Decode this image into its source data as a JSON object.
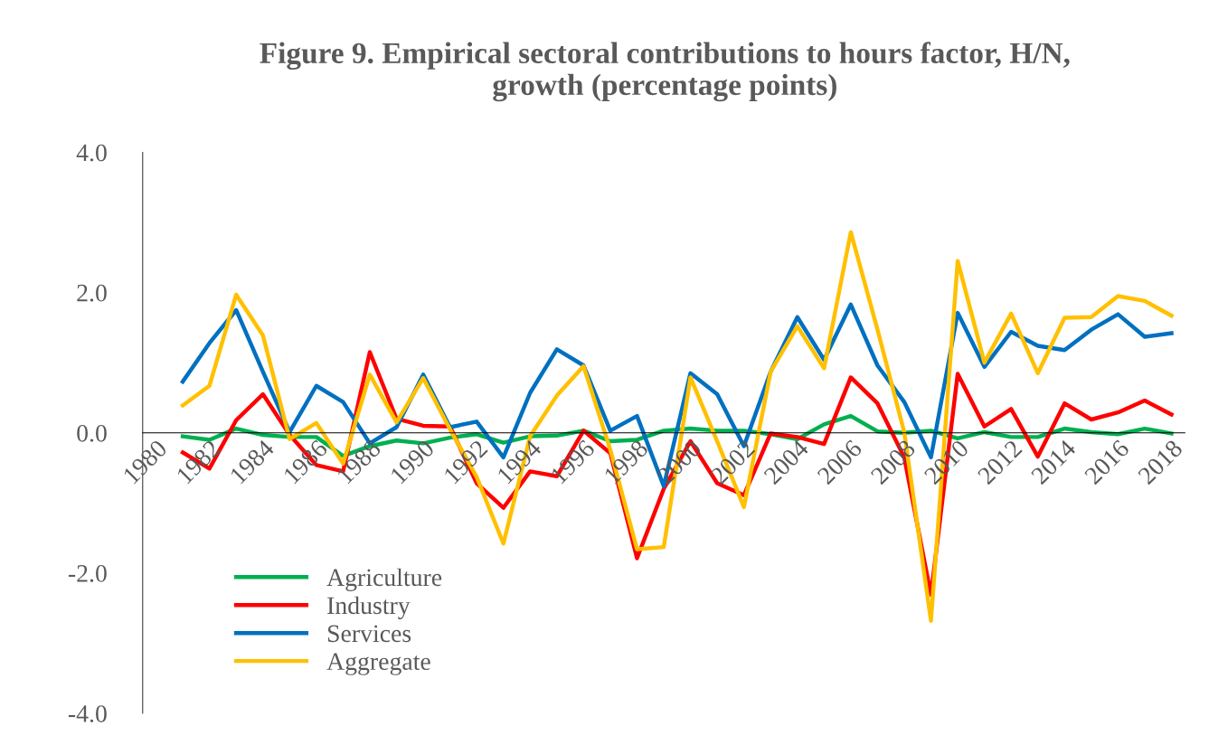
{
  "chart_data": {
    "type": "line",
    "title": "Figure 9. Empirical sectoral contributions to hours factor, H/N,\ngrowth (percentage points)",
    "categories": [
      "1980",
      null,
      "1982",
      null,
      "1984",
      null,
      "1986",
      null,
      "1988",
      null,
      "1990",
      null,
      "1992",
      null,
      "1994",
      null,
      "1996",
      null,
      "1998",
      null,
      "2000",
      null,
      "2002",
      null,
      "2004",
      null,
      "2006",
      null,
      "2008",
      null,
      "2010",
      null,
      "2012",
      null,
      "2014",
      null,
      "2016",
      null,
      "2018"
    ],
    "series": [
      {
        "name": "Agriculture",
        "color": "#00b050",
        "values": [
          null,
          -0.05,
          -0.1,
          0.06,
          -0.03,
          -0.06,
          -0.06,
          -0.33,
          -0.19,
          -0.11,
          -0.15,
          -0.07,
          -0.02,
          -0.14,
          -0.05,
          -0.04,
          0.03,
          -0.12,
          -0.1,
          0.03,
          0.06,
          0.03,
          0.03,
          -0.02,
          -0.09,
          0.12,
          0.24,
          0.02,
          0.0,
          0.03,
          -0.08,
          0.01,
          -0.06,
          -0.06,
          0.06,
          0.01,
          -0.02,
          0.06,
          -0.01
        ]
      },
      {
        "name": "Industry",
        "color": "#ff0000",
        "values": [
          null,
          -0.28,
          -0.51,
          0.18,
          0.55,
          -0.03,
          -0.46,
          -0.55,
          1.15,
          0.2,
          0.1,
          0.09,
          -0.72,
          -1.07,
          -0.55,
          -0.62,
          0.03,
          -0.29,
          -1.79,
          -0.8,
          -0.12,
          -0.72,
          -0.89,
          -0.01,
          -0.06,
          -0.16,
          0.79,
          0.42,
          -0.35,
          -2.31,
          0.84,
          0.09,
          0.34,
          -0.34,
          0.42,
          0.19,
          0.29,
          0.46,
          0.26
        ]
      },
      {
        "name": "Services",
        "color": "#0070c0",
        "values": [
          null,
          0.73,
          1.28,
          1.75,
          0.87,
          0.01,
          0.67,
          0.44,
          -0.15,
          0.08,
          0.83,
          0.08,
          0.16,
          -0.35,
          0.57,
          1.19,
          0.96,
          0.03,
          0.24,
          -0.76,
          0.85,
          0.55,
          -0.19,
          0.87,
          1.65,
          1.04,
          1.83,
          0.96,
          0.44,
          -0.35,
          1.71,
          0.94,
          1.44,
          1.24,
          1.18,
          1.47,
          1.69,
          1.37,
          1.42
        ]
      },
      {
        "name": "Aggregate",
        "color": "#ffc000",
        "values": [
          null,
          0.39,
          0.67,
          1.97,
          1.39,
          -0.09,
          0.14,
          -0.44,
          0.83,
          0.15,
          0.78,
          0.05,
          -0.63,
          -1.58,
          -0.05,
          0.53,
          0.95,
          -0.24,
          -1.66,
          -1.63,
          0.79,
          -0.12,
          -1.06,
          0.87,
          1.52,
          0.92,
          2.86,
          1.47,
          0.01,
          -2.68,
          2.45,
          1.0,
          1.7,
          0.85,
          1.64,
          1.65,
          1.95,
          1.88,
          1.67
        ]
      }
    ],
    "ylim": [
      -4,
      4
    ],
    "yticks": [
      {
        "value": -4,
        "label": "-4.0"
      },
      {
        "value": -2,
        "label": "-2.0"
      },
      {
        "value": 0,
        "label": "0.0"
      },
      {
        "value": 2,
        "label": "2.0"
      },
      {
        "value": 4,
        "label": "4.0"
      }
    ],
    "legend": "bottom left",
    "grid": false,
    "marker": "none",
    "line_style": "solid"
  }
}
